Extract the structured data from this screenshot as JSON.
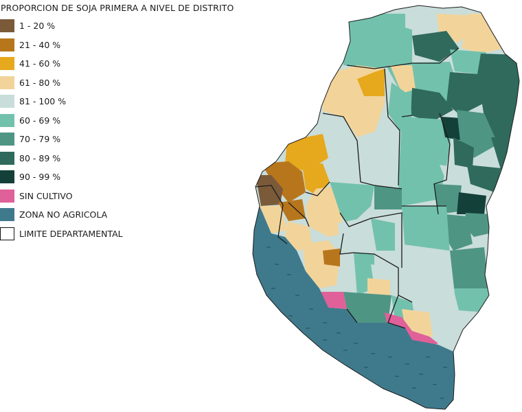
{
  "legend": {
    "title": "PROPORCION DE SOJA PRIMERA A NIVEL DE DISTRITO",
    "items": [
      {
        "label": "1 - 20 %",
        "color": "#7b5a3a"
      },
      {
        "label": "21 - 40 %",
        "color": "#b8761c"
      },
      {
        "label": "41 - 60 %",
        "color": "#e6a81d"
      },
      {
        "label": "61 - 80 %",
        "color": "#f2d49a"
      },
      {
        "label": "81 - 100 %",
        "color": "#c9ddda"
      },
      {
        "label": "60 - 69 %",
        "color": "#72c1ad"
      },
      {
        "label": "70 - 79 %",
        "color": "#4f9584"
      },
      {
        "label": "80 - 89 %",
        "color": "#2f6a5d"
      },
      {
        "label": "90 - 99 %",
        "color": "#14403a"
      },
      {
        "label": "SIN CULTIVO",
        "color": "#e0609a"
      },
      {
        "label": "ZONA NO AGRICOLA",
        "color": "#3f7a8c"
      },
      {
        "label": "LIMITE DEPARTAMENTAL",
        "color": "#ffffff"
      }
    ]
  }
}
